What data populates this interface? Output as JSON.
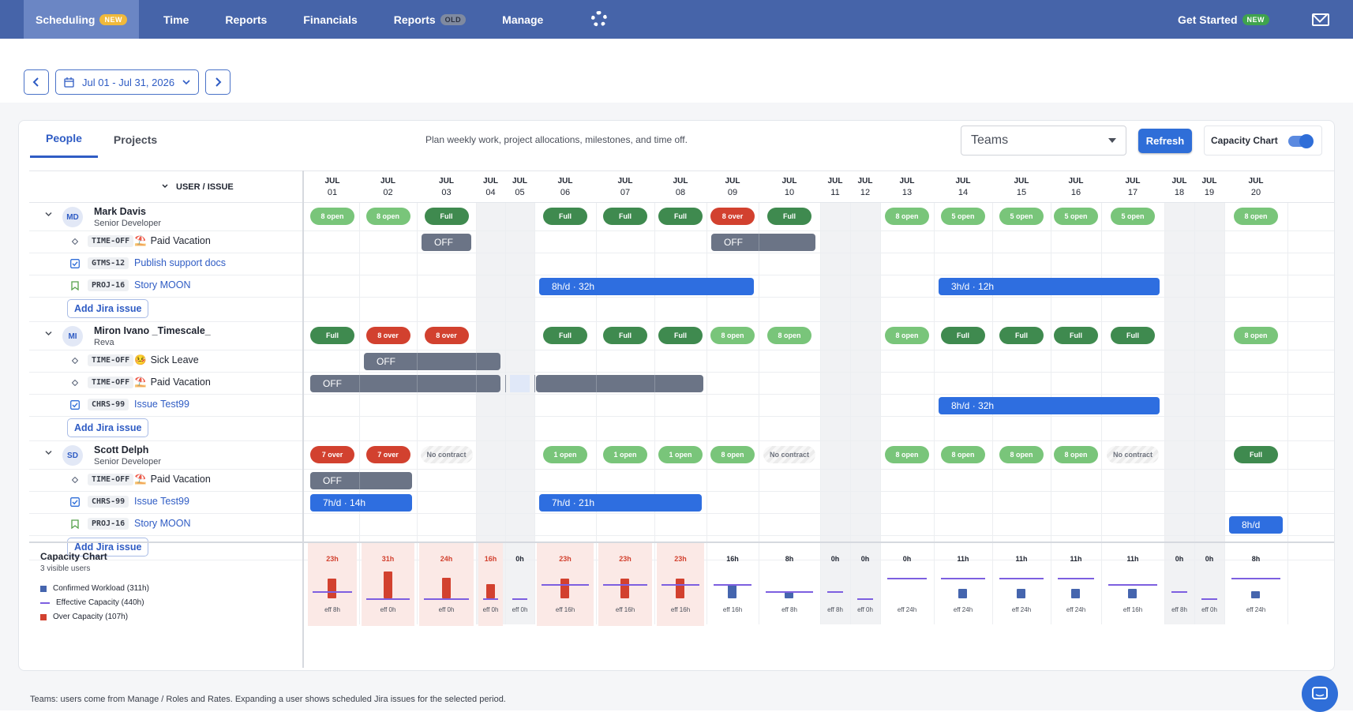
{
  "nav": {
    "items": [
      {
        "label": "Scheduling",
        "badge": "NEW",
        "badge_style": "new",
        "active": true
      },
      {
        "label": "Time"
      },
      {
        "label": "Reports"
      },
      {
        "label": "Financials"
      },
      {
        "label": "Reports",
        "badge": "OLD",
        "badge_style": "old"
      },
      {
        "label": "Manage"
      }
    ],
    "get_started": "Get Started",
    "get_started_badge": "NEW"
  },
  "date_range": "Jul 01 - Jul 31, 2026",
  "tabs": [
    "People",
    "Projects"
  ],
  "hint": "Plan weekly work, project allocations, milestones, and time off.",
  "teams_select": "Teams",
  "refresh_label": "Refresh",
  "capacity_toggle_label": "Capacity Chart",
  "grid_header": "USER / ISSUE",
  "days": [
    {
      "m": "JUL",
      "d": "01"
    },
    {
      "m": "JUL",
      "d": "02"
    },
    {
      "m": "JUL",
      "d": "03"
    },
    {
      "m": "JUL",
      "d": "04"
    },
    {
      "m": "JUL",
      "d": "05"
    },
    {
      "m": "JUL",
      "d": "06"
    },
    {
      "m": "JUL",
      "d": "07"
    },
    {
      "m": "JUL",
      "d": "08"
    },
    {
      "m": "JUL",
      "d": "09"
    },
    {
      "m": "JUL",
      "d": "10"
    },
    {
      "m": "JUL",
      "d": "11"
    },
    {
      "m": "JUL",
      "d": "12"
    },
    {
      "m": "JUL",
      "d": "13"
    },
    {
      "m": "JUL",
      "d": "14"
    },
    {
      "m": "JUL",
      "d": "15"
    },
    {
      "m": "JUL",
      "d": "16"
    },
    {
      "m": "JUL",
      "d": "17"
    },
    {
      "m": "JUL",
      "d": "18"
    },
    {
      "m": "JUL",
      "d": "19"
    },
    {
      "m": "JUL",
      "d": "20"
    }
  ],
  "users": [
    {
      "initials": "MD",
      "name": "Mark Davis",
      "role": "Senior Developer",
      "pills": [
        "8 open",
        "8 open",
        "Full",
        "",
        "",
        "Full",
        "Full",
        "Full",
        "8 over",
        "Full",
        "",
        "",
        "8 open",
        "5 open",
        "5 open",
        "5 open",
        "5 open",
        "",
        "",
        "8 open"
      ],
      "issues": [
        {
          "type": "TIME-OFF",
          "icon": "vacation",
          "title": "Paid Vacation",
          "plain": true
        },
        {
          "type": "GTMS-12",
          "icon": "task",
          "title": "Publish support docs"
        },
        {
          "type": "PROJ-16",
          "icon": "story",
          "title": "Story MOON"
        }
      ],
      "add_label": "Add Jira issue",
      "bar_labels": [
        "OFF",
        "OFF",
        "8h/d · 32h",
        "3h/d · 12h"
      ]
    },
    {
      "initials": "MI",
      "name": "Miron Ivano _Timescale_",
      "role": "Reva",
      "pills": [
        "Full",
        "8 over",
        "8 over",
        "",
        "",
        "Full",
        "Full",
        "Full",
        "8 open",
        "8 open",
        "",
        "",
        "8 open",
        "Full",
        "Full",
        "Full",
        "Full",
        "",
        "",
        "8 open"
      ],
      "issues": [
        {
          "type": "TIME-OFF",
          "icon": "sick",
          "title": "Sick Leave",
          "plain": true
        },
        {
          "type": "TIME-OFF",
          "icon": "vacation",
          "title": "Paid Vacation",
          "plain": true
        },
        {
          "type": "CHRS-99",
          "icon": "task",
          "title": "Issue Test99"
        }
      ],
      "add_label": "Add Jira issue",
      "bar_labels": [
        "OFF",
        "OFF",
        "8h/d · 32h"
      ]
    },
    {
      "initials": "SD",
      "name": "Scott Delph",
      "role": "Senior Developer",
      "pills": [
        "7 over",
        "7 over",
        "No contract",
        "",
        "",
        "1 open",
        "1 open",
        "1 open",
        "8 open",
        "No contract",
        "",
        "",
        "8 open",
        "8 open",
        "8 open",
        "8 open",
        "No contract",
        "",
        "",
        "Full"
      ],
      "issues": [
        {
          "type": "TIME-OFF",
          "icon": "vacation",
          "title": "Paid Vacation",
          "plain": true
        },
        {
          "type": "CHRS-99",
          "icon": "task",
          "title": "Issue Test99"
        },
        {
          "type": "PROJ-16",
          "icon": "story",
          "title": "Story MOON"
        }
      ],
      "add_label": "Add Jira issue",
      "bar_labels": [
        "OFF",
        "7h/d · 14h",
        "7h/d · 21h",
        "8h/d"
      ]
    }
  ],
  "capacity": {
    "title": "Capacity Chart",
    "subtitle": "3 visible users",
    "legend": [
      "Confirmed Workload (311h)",
      "Effective Capacity (440h)",
      "Over Capacity (107h)"
    ],
    "colors": {
      "confirmed": "#4565ae",
      "effective": "#7d5fe0",
      "over": "#d2412f"
    },
    "values": [
      "23h",
      "31h",
      "24h",
      "16h",
      "0h",
      "23h",
      "23h",
      "23h",
      "16h",
      "8h",
      "0h",
      "0h",
      "0h",
      "11h",
      "11h",
      "11h",
      "11h",
      "0h",
      "0h",
      "8h"
    ],
    "workload_h": [
      23,
      31,
      24,
      16,
      0,
      23,
      23,
      23,
      16,
      8,
      0,
      0,
      0,
      11,
      11,
      11,
      11,
      0,
      0,
      8
    ],
    "effective_h": [
      8,
      0,
      0,
      0,
      0,
      16,
      16,
      16,
      16,
      8,
      8,
      0,
      24,
      24,
      24,
      24,
      16,
      8,
      0,
      24
    ],
    "eff": [
      "eff 8h",
      "eff 0h",
      "eff 0h",
      "eff 0h",
      "eff 0h",
      "eff 16h",
      "eff 16h",
      "eff 16h",
      "eff 16h",
      "eff 8h",
      "eff 8h",
      "eff 0h",
      "eff 24h",
      "eff 24h",
      "eff 24h",
      "eff 24h",
      "eff 16h",
      "eff 8h",
      "eff 0h",
      "eff 24h"
    ],
    "over": [
      true,
      true,
      true,
      true,
      false,
      true,
      true,
      true,
      false,
      false,
      false,
      false,
      false,
      false,
      false,
      false,
      false,
      false,
      false,
      false
    ]
  },
  "footnote": "Teams: users come from Manage / Roles and Rates. Expanding a user shows scheduled Jira issues for the selected period."
}
